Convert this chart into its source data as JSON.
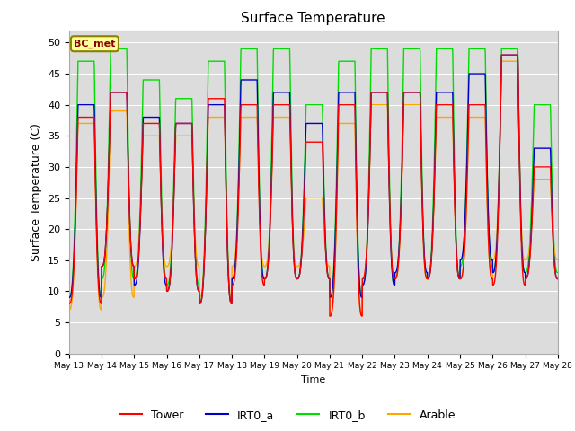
{
  "title": "Surface Temperature",
  "ylabel": "Surface Temperature (C)",
  "xlabel": "Time",
  "ylim": [
    0,
    52
  ],
  "yticks": [
    0,
    5,
    10,
    15,
    20,
    25,
    30,
    35,
    40,
    45,
    50
  ],
  "bg_color": "#dcdcdc",
  "fig_color": "#ffffff",
  "annotation_text": "BC_met",
  "annotation_bg": "#ffff99",
  "annotation_border": "#8B8000",
  "legend_labels": [
    "Tower",
    "IRT0_a",
    "IRT0_b",
    "Arable"
  ],
  "legend_colors": [
    "#ff0000",
    "#0000cc",
    "#00dd00",
    "#ffa500"
  ],
  "line_width": 1.0,
  "tick_labels": [
    "May 13",
    "May 14",
    "May 15",
    "May 16",
    "May 17",
    "May 18",
    "May 19",
    "May 20",
    "May 21",
    "May 22",
    "May 23",
    "May 24",
    "May 25",
    "May 26",
    "May 27",
    "May 28"
  ],
  "tower_peaks": [
    38,
    42,
    37,
    37,
    41,
    40,
    40,
    34,
    40,
    42,
    42,
    40,
    40,
    48,
    30
  ],
  "tower_mins": [
    8,
    14,
    12,
    10,
    8,
    11,
    12,
    12,
    6,
    12,
    12,
    12,
    12,
    11,
    12
  ],
  "irt0a_peaks": [
    40,
    42,
    38,
    37,
    40,
    44,
    42,
    37,
    42,
    42,
    42,
    42,
    45,
    48,
    33
  ],
  "irt0a_mins": [
    9,
    14,
    11,
    10,
    8,
    12,
    12,
    12,
    9,
    11,
    13,
    12,
    15,
    13,
    12
  ],
  "irt0b_peaks": [
    47,
    49,
    44,
    41,
    47,
    49,
    49,
    40,
    47,
    49,
    49,
    49,
    49,
    49,
    40
  ],
  "irt0b_mins": [
    9,
    12,
    12,
    11,
    8,
    12,
    12,
    12,
    9,
    11,
    12,
    12,
    14,
    13,
    13
  ],
  "arable_peaks": [
    37,
    39,
    35,
    35,
    38,
    38,
    38,
    25,
    37,
    40,
    40,
    38,
    38,
    47,
    28
  ],
  "arable_mins": [
    7,
    9,
    14,
    14,
    9,
    14,
    14,
    14,
    6,
    12,
    12,
    12,
    12,
    15,
    15
  ],
  "n_days": 15,
  "pts_per_day": 144
}
